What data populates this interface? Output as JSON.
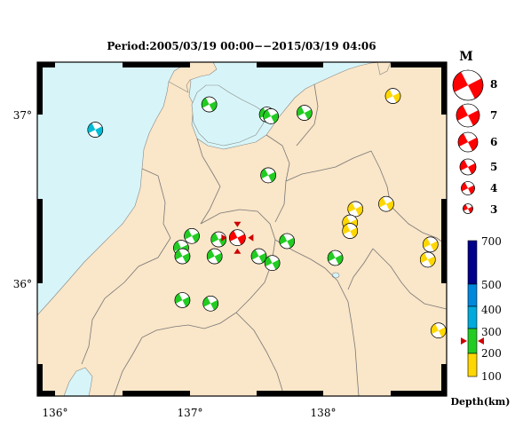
{
  "title": "Period:2005/03/19 00:00−−2015/03/19 04:06",
  "lon_ticks": [
    "136°",
    "137°",
    "138°"
  ],
  "lat_ticks": [
    "37°",
    "36°"
  ],
  "legend": {
    "title": "M",
    "magnitudes": [
      "8",
      "7",
      "6",
      "5",
      "4",
      "3"
    ]
  },
  "depth_scale": {
    "label": "Depth(km)",
    "ticks": [
      "700",
      "500",
      "400",
      "300",
      "200",
      "100"
    ],
    "colors": {
      "shallow": "#ffd700",
      "mid": "#22cc22",
      "deep1": "#00aadd",
      "deep2": "#0088dd",
      "deepest": "#00008b"
    },
    "marker_color": "#cc0000"
  },
  "colors": {
    "land": "#fae6c8",
    "sea": "#d7f5f8",
    "main_event": "#ff0000",
    "frame": "#000000"
  },
  "main_event": {
    "lon": 137.36,
    "lat": 36.27,
    "depth_km": 260,
    "magnitude": 4
  },
  "events": [
    {
      "lon": 136.3,
      "lat": 36.91,
      "color": "#00bcd4"
    },
    {
      "lon": 137.15,
      "lat": 37.06,
      "color": "#22cc22"
    },
    {
      "lon": 137.58,
      "lat": 37.0,
      "color": "#22cc22"
    },
    {
      "lon": 137.61,
      "lat": 36.99,
      "color": "#22cc22"
    },
    {
      "lon": 137.86,
      "lat": 37.01,
      "color": "#22cc22"
    },
    {
      "lon": 138.52,
      "lat": 37.11,
      "color": "#ffd700"
    },
    {
      "lon": 137.59,
      "lat": 36.64,
      "color": "#22cc22"
    },
    {
      "lon": 138.24,
      "lat": 36.44,
      "color": "#ffd700"
    },
    {
      "lon": 138.47,
      "lat": 36.47,
      "color": "#ffd700"
    },
    {
      "lon": 138.2,
      "lat": 36.36,
      "color": "#ffd700"
    },
    {
      "lon": 138.2,
      "lat": 36.31,
      "color": "#ffd700"
    },
    {
      "lon": 137.02,
      "lat": 36.28,
      "color": "#22cc22"
    },
    {
      "lon": 136.94,
      "lat": 36.21,
      "color": "#22cc22"
    },
    {
      "lon": 136.95,
      "lat": 36.16,
      "color": "#22cc22"
    },
    {
      "lon": 137.22,
      "lat": 36.26,
      "color": "#22cc22"
    },
    {
      "lon": 137.19,
      "lat": 36.16,
      "color": "#22cc22"
    },
    {
      "lon": 137.52,
      "lat": 36.16,
      "color": "#22cc22"
    },
    {
      "lon": 137.62,
      "lat": 36.12,
      "color": "#22cc22"
    },
    {
      "lon": 137.73,
      "lat": 36.25,
      "color": "#22cc22"
    },
    {
      "lon": 138.09,
      "lat": 36.15,
      "color": "#22cc22"
    },
    {
      "lon": 138.8,
      "lat": 36.23,
      "color": "#ffd700"
    },
    {
      "lon": 138.78,
      "lat": 36.14,
      "color": "#ffd700"
    },
    {
      "lon": 136.95,
      "lat": 35.9,
      "color": "#22cc22"
    },
    {
      "lon": 137.16,
      "lat": 35.88,
      "color": "#22cc22"
    },
    {
      "lon": 138.86,
      "lat": 35.72,
      "color": "#ffd700"
    }
  ]
}
